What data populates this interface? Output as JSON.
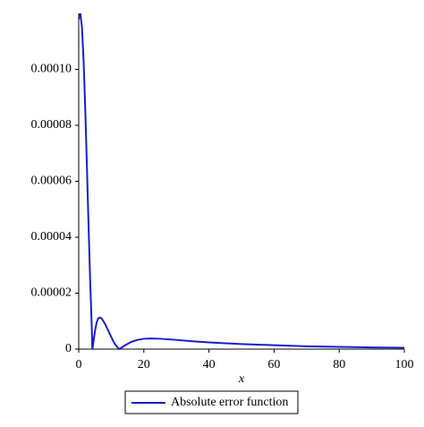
{
  "chart_data": {
    "type": "line",
    "x_label": "x",
    "series": [
      {
        "name": "Absolute error function",
        "color": "#1c1ccc",
        "x": [
          0,
          0.5,
          1,
          1.5,
          2,
          2.5,
          3,
          3.5,
          4,
          4.2,
          5,
          5.5,
          6,
          6.5,
          7,
          8,
          9,
          10,
          11,
          12,
          12.5,
          14,
          16,
          18,
          20,
          22,
          25,
          30,
          35,
          40,
          50,
          60,
          70,
          80,
          90,
          100
        ],
        "values": [
          0.000118,
          0.00012,
          0.000115,
          0.000103,
          8.6e-05,
          6.6e-05,
          4.5e-05,
          2.5e-05,
          8e-06,
          0,
          6.5e-06,
          9.5e-06,
          1.1e-05,
          1.13e-05,
          1.1e-05,
          9.2e-06,
          6.8e-06,
          4.3e-06,
          2e-06,
          5e-07,
          0,
          1.2e-06,
          2.5e-06,
          3.3e-06,
          3.7e-06,
          3.8e-06,
          3.7e-06,
          3.3e-06,
          2.8e-06,
          2.4e-06,
          1.8e-06,
          1.4e-06,
          1e-06,
          8e-07,
          6e-07,
          5e-07
        ]
      }
    ],
    "xlim": [
      0,
      100
    ],
    "xticks": [
      0,
      20,
      40,
      60,
      80,
      100
    ],
    "ylim": [
      0,
      0.00012
    ],
    "yticks": [
      0,
      2e-05,
      4e-05,
      6e-05,
      8e-05,
      {
        "value": 0.0001,
        "label": "0.00010"
      }
    ]
  }
}
